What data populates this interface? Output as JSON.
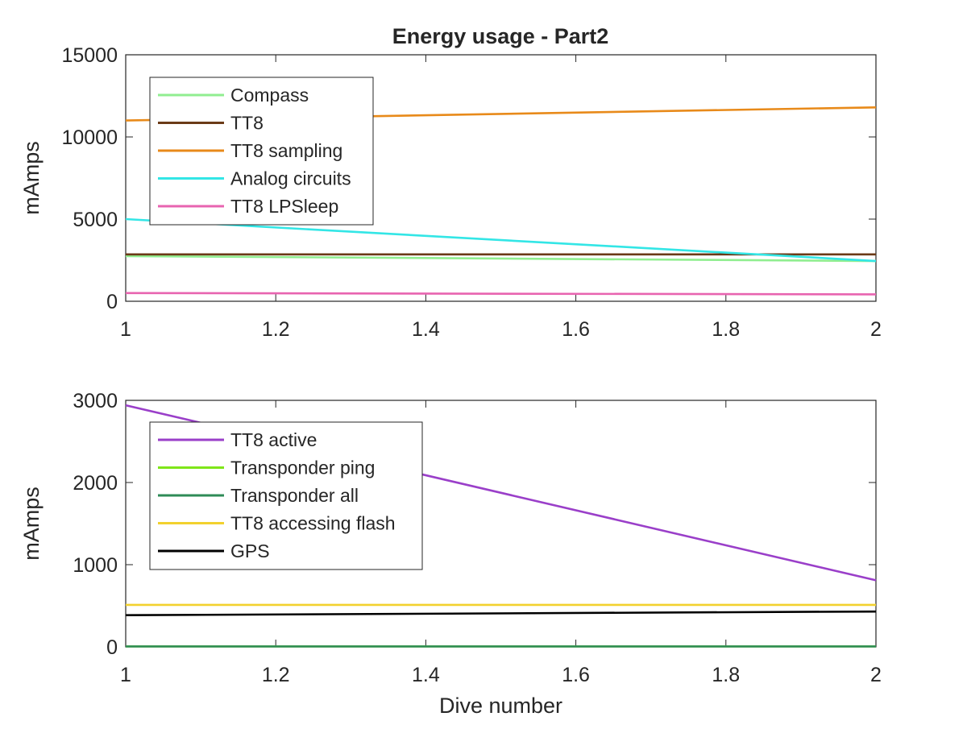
{
  "title": "Energy usage - Part2",
  "chart_data": [
    {
      "type": "line",
      "title": "Energy usage - Part2",
      "xlabel": "",
      "ylabel": "mAmps",
      "xlim": [
        1,
        2
      ],
      "ylim": [
        0,
        15000
      ],
      "xticks": [
        "1",
        "1.2",
        "1.4",
        "1.6",
        "1.8",
        "2"
      ],
      "yticks": [
        "0",
        "5000",
        "10000",
        "15000"
      ],
      "grid": false,
      "legend_position": "top-left",
      "series": [
        {
          "name": "Compass",
          "color": "#90ee90",
          "x": [
            1,
            2
          ],
          "y": [
            2750,
            2450
          ]
        },
        {
          "name": "TT8",
          "color": "#6b3a17",
          "x": [
            1,
            2
          ],
          "y": [
            2850,
            2850
          ]
        },
        {
          "name": "TT8 sampling",
          "color": "#e88a1a",
          "x": [
            1,
            2
          ],
          "y": [
            11000,
            11800
          ]
        },
        {
          "name": "Analog circuits",
          "color": "#33e6e6",
          "x": [
            1,
            2
          ],
          "y": [
            5000,
            2450
          ]
        },
        {
          "name": "TT8 LPSleep",
          "color": "#e864b0",
          "x": [
            1,
            2
          ],
          "y": [
            500,
            420
          ]
        }
      ]
    },
    {
      "type": "line",
      "title": "",
      "xlabel": "Dive number",
      "ylabel": "mAmps",
      "xlim": [
        1,
        2
      ],
      "ylim": [
        0,
        3000
      ],
      "xticks": [
        "1",
        "1.2",
        "1.4",
        "1.6",
        "1.8",
        "2"
      ],
      "yticks": [
        "0",
        "1000",
        "2000",
        "3000"
      ],
      "grid": false,
      "legend_position": "top-left",
      "series": [
        {
          "name": "TT8 active",
          "color": "#9a3fc9",
          "x": [
            1,
            2
          ],
          "y": [
            2940,
            810
          ]
        },
        {
          "name": "Transponder ping",
          "color": "#7fe619",
          "x": [
            1,
            2
          ],
          "y": [
            5,
            5
          ]
        },
        {
          "name": "Transponder all",
          "color": "#2e8b57",
          "x": [
            1,
            2
          ],
          "y": [
            5,
            5
          ]
        },
        {
          "name": "TT8 accessing flash",
          "color": "#f2d12e",
          "x": [
            1,
            2
          ],
          "y": [
            510,
            510
          ]
        },
        {
          "name": "GPS",
          "color": "#000000",
          "x": [
            1,
            2
          ],
          "y": [
            385,
            430
          ]
        }
      ]
    }
  ]
}
